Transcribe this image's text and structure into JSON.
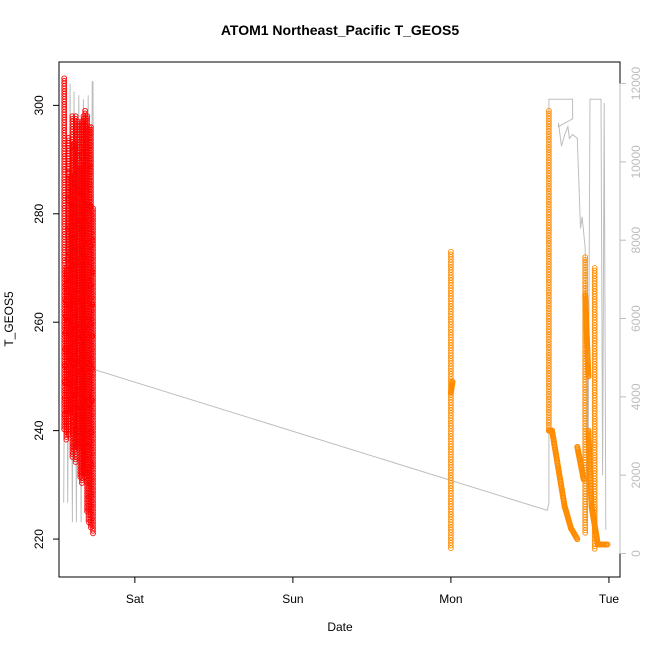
{
  "chart_data": {
    "type": "scatter",
    "title": "ATOM1 Northeast_Pacific T_GEOS5",
    "xlabel": "Date",
    "ylabel": "T_GEOS5",
    "x_ticks": [
      "Sat",
      "Sun",
      "Mon",
      "Tue"
    ],
    "x_tick_days": [
      1,
      2,
      3,
      4
    ],
    "xlim_days": [
      0.52,
      4.07
    ],
    "ylim": [
      213,
      308
    ],
    "y_ticks": [
      220,
      240,
      260,
      280,
      300
    ],
    "y2_ticks": [
      0,
      2000,
      4000,
      6000,
      8000,
      10000,
      12000
    ],
    "y2lim": [
      -600,
      12550
    ],
    "colors": {
      "series_1": "#ff0000",
      "series_2": "#ff8c00",
      "altitude": "#bebebe",
      "axis": "#000000",
      "axis_right": "#bdbdbd"
    },
    "series": [
      {
        "marker": "open-circle",
        "color": "#ff0000",
        "cycles": [
          [
            0.553,
            305,
            240
          ],
          [
            0.566,
            270,
            238
          ],
          [
            0.58,
            294,
            239
          ],
          [
            0.592,
            287,
            243
          ],
          [
            0.605,
            298,
            235
          ],
          [
            0.616,
            293,
            236
          ],
          [
            0.625,
            298,
            234
          ],
          [
            0.64,
            297,
            237
          ],
          [
            0.655,
            289,
            231
          ],
          [
            0.665,
            297,
            230
          ],
          [
            0.675,
            298,
            232
          ],
          [
            0.685,
            299,
            231
          ],
          [
            0.698,
            298,
            225
          ],
          [
            0.71,
            296,
            223
          ],
          [
            0.722,
            296,
            222
          ],
          [
            0.735,
            281,
            221
          ]
        ]
      },
      {
        "marker": "open-circle",
        "color": "#ff8c00",
        "cycles": [
          [
            3.0,
            273,
            218
          ],
          [
            3.62,
            299,
            240
          ],
          [
            3.85,
            272,
            221
          ],
          [
            3.91,
            270,
            218
          ]
        ],
        "thick_segments": [
          [
            3.0,
            3.01,
            247,
            249
          ],
          [
            3.62,
            3.64,
            240,
            240
          ],
          [
            3.64,
            3.72,
            240,
            226
          ],
          [
            3.72,
            3.76,
            226,
            222
          ],
          [
            3.76,
            3.8,
            222,
            220
          ],
          [
            3.8,
            3.84,
            237,
            231
          ],
          [
            3.85,
            3.87,
            265,
            250
          ],
          [
            3.87,
            3.89,
            240,
            226
          ],
          [
            3.89,
            3.93,
            226,
            219
          ],
          [
            3.93,
            3.99,
            219,
            219
          ]
        ]
      }
    ],
    "altitude_line": [
      [
        0.55,
        1300
      ],
      [
        0.565,
        12050
      ],
      [
        0.575,
        1300
      ],
      [
        0.59,
        12000
      ],
      [
        0.605,
        800
      ],
      [
        0.615,
        11800
      ],
      [
        0.63,
        800
      ],
      [
        0.645,
        11700
      ],
      [
        0.66,
        800
      ],
      [
        0.675,
        11600
      ],
      [
        0.69,
        800
      ],
      [
        0.705,
        11700
      ],
      [
        0.72,
        900
      ],
      [
        0.73,
        12050
      ],
      [
        0.735,
        12050
      ],
      [
        0.74,
        4700
      ],
      [
        3.61,
        1100
      ],
      [
        3.62,
        1300
      ],
      [
        3.62,
        11600
      ],
      [
        3.77,
        11600
      ],
      [
        3.77,
        11100
      ],
      [
        3.68,
        10900
      ],
      [
        3.68,
        11000
      ],
      [
        3.7,
        10400
      ],
      [
        3.72,
        10700
      ],
      [
        3.74,
        10900
      ],
      [
        3.75,
        10600
      ],
      [
        3.77,
        10700
      ],
      [
        3.8,
        10600
      ],
      [
        3.82,
        8300
      ],
      [
        3.83,
        8600
      ],
      [
        3.85,
        7800
      ],
      [
        3.86,
        800
      ],
      [
        3.87,
        3500
      ],
      [
        3.88,
        11600
      ],
      [
        3.95,
        11600
      ],
      [
        3.96,
        2000
      ],
      [
        3.97,
        11500
      ],
      [
        3.98,
        600
      ]
    ]
  }
}
